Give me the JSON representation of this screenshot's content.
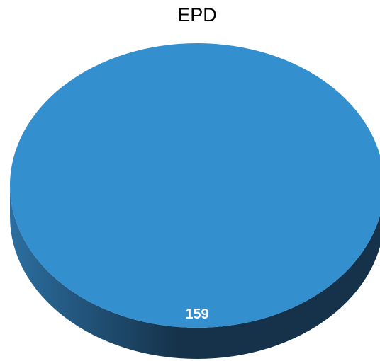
{
  "chart_data": {
    "type": "pie",
    "title": "EPD",
    "slices": [
      {
        "label": "",
        "value": 159,
        "value_label": "159"
      }
    ],
    "style": "3d",
    "colors": {
      "top": "#348fcf",
      "side_light": "#2c6ea0",
      "side_dark": "#15324a"
    },
    "legend": "none"
  }
}
